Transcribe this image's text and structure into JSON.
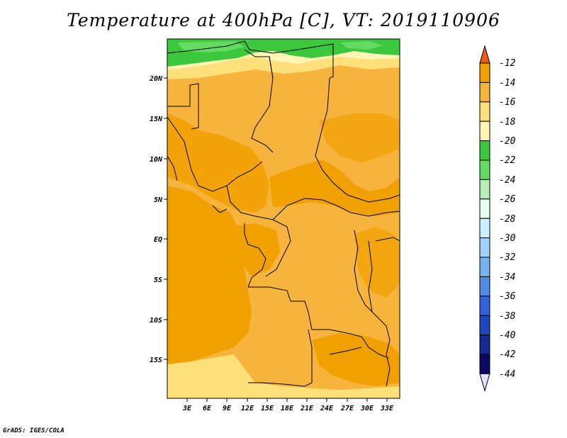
{
  "title": "Temperature at 400hPa [C], VT: 2019110906",
  "credit": "GrADS: IGES/COLA",
  "map": {
    "lat_labels": [
      "20N",
      "15N",
      "10N",
      "5N",
      "EQ",
      "5S",
      "10S",
      "15S"
    ],
    "lon_labels": [
      "3E",
      "6E",
      "9E",
      "12E",
      "15E",
      "18E",
      "21E",
      "24E",
      "27E",
      "30E",
      "33E"
    ]
  },
  "colorbar": {
    "labels": [
      "-12",
      "-14",
      "-16",
      "-18",
      "-20",
      "-22",
      "-24",
      "-26",
      "-28",
      "-30",
      "-32",
      "-34",
      "-36",
      "-38",
      "-40",
      "-42",
      "-44"
    ],
    "colors": [
      "#f05a14",
      "#f0a000",
      "#f7b43c",
      "#fde07a",
      "#fff5b4",
      "#3cc83c",
      "#64dc64",
      "#b4f0b4",
      "#e6fff2",
      "#c8f0ff",
      "#a0d2fa",
      "#78b4f0",
      "#508ce6",
      "#3264dc",
      "#1e46be",
      "#142896",
      "#0a0a64",
      "#e1e1ff"
    ]
  }
}
